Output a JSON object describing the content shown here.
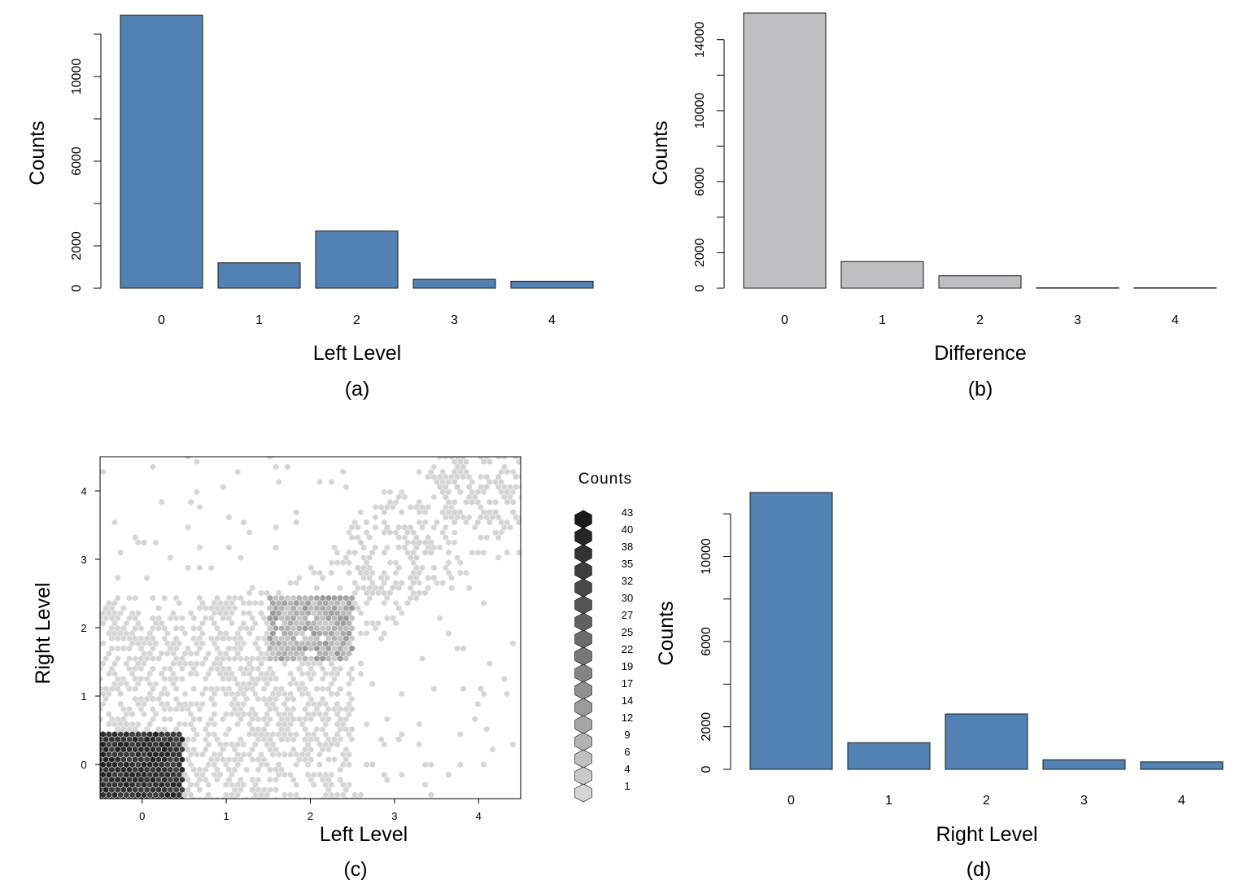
{
  "chart_data": [
    {
      "panel": "(a)",
      "type": "bar",
      "categories": [
        "0",
        "1",
        "2",
        "3",
        "4"
      ],
      "values": [
        12900,
        1200,
        2700,
        420,
        330
      ],
      "xlabel": "Left Level",
      "ylabel": "Counts",
      "ylim": [
        0,
        13000
      ],
      "yticks": [
        0,
        2000,
        6000,
        10000
      ],
      "bar_color": "#5282b4",
      "caption": "(a)"
    },
    {
      "panel": "(b)",
      "type": "bar",
      "categories": [
        "0",
        "1",
        "2",
        "3",
        "4"
      ],
      "values": [
        15500,
        1500,
        700,
        20,
        20
      ],
      "xlabel": "Difference",
      "ylabel": "Counts",
      "ylim": [
        0,
        15500
      ],
      "yticks": [
        0,
        2000,
        6000,
        10000,
        14000
      ],
      "bar_color": "#bfbfc1",
      "caption": "(b)"
    },
    {
      "panel": "(c)",
      "type": "heatmap",
      "subtype": "hexbin",
      "xlabel": "Left Level",
      "ylabel": "Right Level",
      "xlim": [
        -0.5,
        4.5
      ],
      "ylim": [
        -0.5,
        4.5
      ],
      "xticks": [
        "0",
        "1",
        "2",
        "3",
        "4"
      ],
      "yticks": [
        "0",
        "1",
        "2",
        "3",
        "4"
      ],
      "legend_title": "Counts",
      "legend_values": [
        "43",
        "40",
        "38",
        "35",
        "32",
        "30",
        "27",
        "25",
        "22",
        "19",
        "17",
        "14",
        "12",
        "9",
        "6",
        "4",
        "1"
      ],
      "high_color": "#1a1a1a",
      "low_color": "#d6d6d6",
      "caption": "(c)"
    },
    {
      "panel": "(d)",
      "type": "bar",
      "categories": [
        "0",
        "1",
        "2",
        "3",
        "4"
      ],
      "values": [
        13000,
        1250,
        2600,
        450,
        350
      ],
      "xlabel": "Right Level",
      "ylabel": "Counts",
      "ylim": [
        0,
        13000
      ],
      "yticks": [
        0,
        2000,
        6000,
        10000
      ],
      "bar_color": "#5282b4",
      "caption": "(d)"
    }
  ]
}
